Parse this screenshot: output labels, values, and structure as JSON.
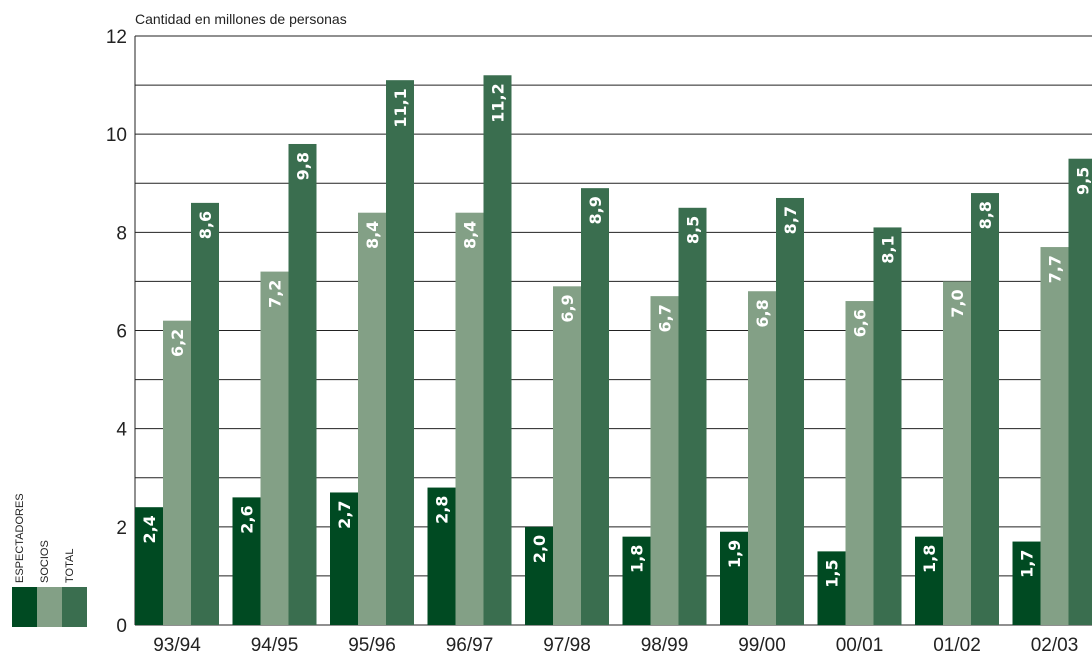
{
  "chart_data": {
    "type": "bar",
    "ylabel": "Cantidad en millones de personas",
    "ylim": [
      0,
      12
    ],
    "yticks": [
      0,
      2,
      4,
      6,
      8,
      10,
      12
    ],
    "grid": true,
    "legend_position": "bottom-left",
    "categories": [
      "93/94",
      "94/95",
      "95/96",
      "96/97",
      "97/98",
      "98/99",
      "99/00",
      "00/01",
      "01/02",
      "02/03"
    ],
    "series": [
      {
        "name": "ESPECTADORES",
        "color": "#004a22",
        "values": [
          2.4,
          2.6,
          2.7,
          2.8,
          2.0,
          1.8,
          1.9,
          1.5,
          1.8,
          1.7
        ],
        "labels": [
          "2,4",
          "2,6",
          "2,7",
          "2,8",
          "2,0",
          "1,8",
          "1,9",
          "1,5",
          "1,8",
          "1,7"
        ]
      },
      {
        "name": "SOCIOS",
        "color": "#83a086",
        "values": [
          6.2,
          7.2,
          8.4,
          8.4,
          6.9,
          6.7,
          6.8,
          6.6,
          7.0,
          7.7
        ],
        "labels": [
          "6,2",
          "7,2",
          "8,4",
          "8,4",
          "6,9",
          "6,7",
          "6,8",
          "6,6",
          "7,0",
          "7,7"
        ]
      },
      {
        "name": "TOTAL",
        "color": "#3a6e4f",
        "values": [
          8.6,
          9.8,
          11.1,
          11.2,
          8.9,
          8.5,
          8.7,
          8.1,
          8.8,
          9.5
        ],
        "labels": [
          "8,6",
          "9,8",
          "11,1",
          "11,2",
          "8,9",
          "8,5",
          "8,7",
          "8,1",
          "8,8",
          "9,5"
        ]
      }
    ]
  }
}
